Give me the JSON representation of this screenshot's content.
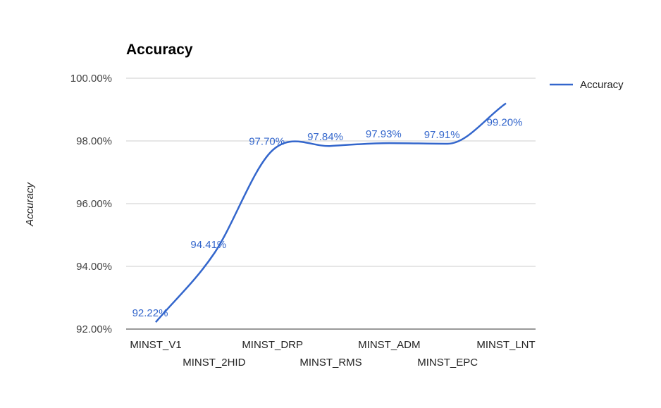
{
  "chart_data": {
    "type": "line",
    "title": "Accuracy",
    "xlabel": "",
    "ylabel": "Accuracy",
    "categories": [
      "MINST_V1",
      "MINST_2HID",
      "MINST_DRP",
      "MINST_RMS",
      "MINST_ADM",
      "MINST_EPC",
      "MINST_LNT"
    ],
    "series": [
      {
        "name": "Accuracy",
        "color": "#3366cc",
        "values": [
          92.22,
          94.41,
          97.7,
          97.84,
          97.93,
          97.91,
          99.2
        ],
        "value_labels": [
          "92.22%",
          "94.41%",
          "97.70%",
          "97.84%",
          "97.93%",
          "97.91%",
          "99.20%"
        ]
      }
    ],
    "ylim": [
      92,
      100
    ],
    "yticks": [
      92,
      94,
      96,
      98,
      100
    ],
    "ytick_labels": [
      "92.00%",
      "94.00%",
      "96.00%",
      "98.00%",
      "100.00%"
    ],
    "grid": true,
    "legend_position": "right",
    "curve": "smooth"
  }
}
